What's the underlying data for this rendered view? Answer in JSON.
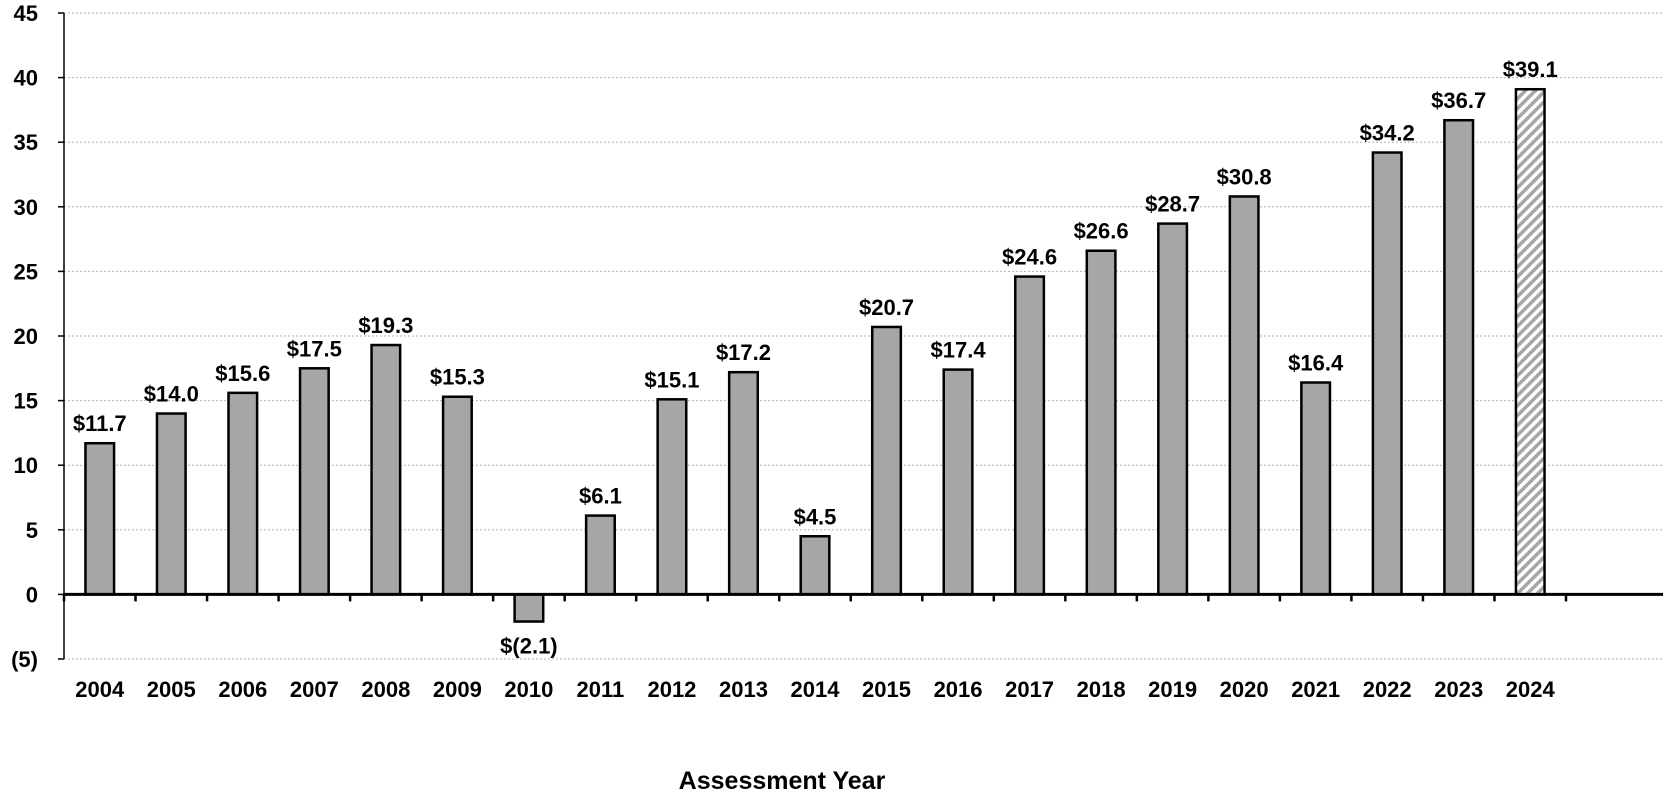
{
  "chart_data": {
    "type": "bar",
    "title": "",
    "xlabel": "Assessment Year",
    "ylabel": "",
    "ylim": [
      -5,
      45
    ],
    "y_ticks": [
      -5,
      0,
      5,
      10,
      15,
      20,
      25,
      30,
      35,
      40,
      45
    ],
    "y_tick_labels": [
      "(5)",
      "0",
      "5",
      "10",
      "15",
      "20",
      "25",
      "30",
      "35",
      "40",
      "45"
    ],
    "grid": true,
    "legend": "none",
    "categories": [
      "2004",
      "2005",
      "2006",
      "2007",
      "2008",
      "2009",
      "2010",
      "2011",
      "2012",
      "2013",
      "2014",
      "2015",
      "2016",
      "2017",
      "2018",
      "2019",
      "2020",
      "2021",
      "2022",
      "2023",
      "2024"
    ],
    "values": [
      11.7,
      14.0,
      15.6,
      17.5,
      19.3,
      15.3,
      -2.1,
      6.1,
      15.1,
      17.2,
      4.5,
      20.7,
      17.4,
      24.6,
      26.6,
      28.7,
      30.8,
      16.4,
      34.2,
      36.7,
      39.1
    ],
    "data_labels": [
      "$11.7",
      "$14.0",
      "$15.6",
      "$17.5",
      "$19.3",
      "$15.3",
      "$(2.1)",
      "$6.1",
      "$15.1",
      "$17.2",
      "$4.5",
      "$20.7",
      "$17.4",
      "$24.6",
      "$26.6",
      "$28.7",
      "$30.8",
      "$16.4",
      "$34.2",
      "$36.7",
      "$39.1"
    ],
    "hatched_categories": [
      "2024"
    ],
    "colors": {
      "bar_fill": "#a6a6a6",
      "bar_stroke": "#000000",
      "grid": "#b3b3b3",
      "hatch": "#a6a6a6"
    }
  }
}
